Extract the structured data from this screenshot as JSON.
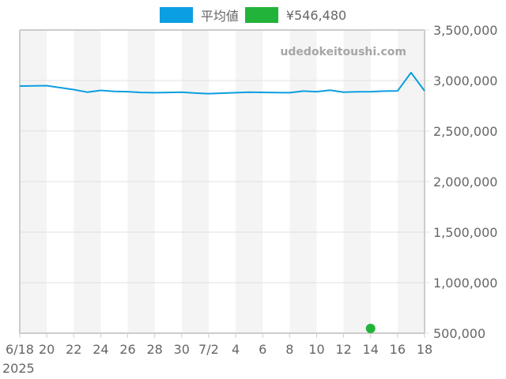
{
  "legend": {
    "items": [
      {
        "label": "平均値",
        "color": "#0b9ee0"
      },
      {
        "label": "¥546,480",
        "color": "#22b33a"
      }
    ]
  },
  "watermark": "udedokeitoushi.com",
  "colors": {
    "line": "#0b9ee0",
    "point": "#22b33a",
    "band": "#f4f4f4",
    "grid": "#e0e0e0",
    "frame": "#cccccc",
    "text": "#666666"
  },
  "chart_data": {
    "type": "line",
    "title": "",
    "xlabel": "",
    "ylabel": "",
    "x_start_date": "2025-06-18",
    "x_tick_labels": [
      "6/18",
      "20",
      "22",
      "24",
      "26",
      "28",
      "30",
      "7/2",
      "4",
      "6",
      "8",
      "10",
      "12",
      "14",
      "16",
      "18"
    ],
    "x_year_label": "2025",
    "y_tick_labels": [
      "3,500,000",
      "3,000,000",
      "2,500,000",
      "2,000,000",
      "1,500,000",
      "1,000,000",
      "500,000"
    ],
    "ylim": [
      500000,
      3500000
    ],
    "grid": true,
    "legend_position": "top",
    "x": [
      "6/18",
      "6/19",
      "6/20",
      "6/21",
      "6/22",
      "6/23",
      "6/24",
      "6/25",
      "6/26",
      "6/27",
      "6/28",
      "6/29",
      "6/30",
      "7/1",
      "7/2",
      "7/3",
      "7/4",
      "7/5",
      "7/6",
      "7/7",
      "7/8",
      "7/9",
      "7/10",
      "7/11",
      "7/12",
      "7/13",
      "7/14",
      "7/15",
      "7/16",
      "7/17",
      "7/18"
    ],
    "series": [
      {
        "name": "平均値",
        "values": [
          2945000,
          2947000,
          2949000,
          2930000,
          2910000,
          2885000,
          2902000,
          2893000,
          2890000,
          2882000,
          2880000,
          2882000,
          2885000,
          2876000,
          2870000,
          2875000,
          2880000,
          2884000,
          2883000,
          2881000,
          2880000,
          2895000,
          2890000,
          2904000,
          2885000,
          2888000,
          2890000,
          2895000,
          2898000,
          3078000,
          2898000
        ]
      },
      {
        "name": "¥546,480",
        "points": [
          {
            "x": "7/14",
            "y": 546480
          }
        ]
      }
    ]
  }
}
